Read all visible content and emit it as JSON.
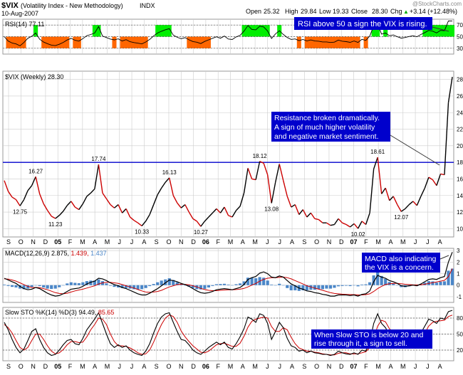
{
  "header": {
    "symbol": "$VIX",
    "name": "(Volatility Index - New Methodology)",
    "exchange": "INDX",
    "date": "10-Aug-2007",
    "quote": {
      "open_label": "Open",
      "open": "25.32",
      "high_label": "High",
      "high": "29.84",
      "low_label": "Low",
      "low": "19.33",
      "close_label": "Close",
      "close": "28.30",
      "chg_label": "Chg",
      "chg": "+3.14 (+12.48%)",
      "up_arrow": "▲"
    },
    "watermark": "@StockCharts.com"
  },
  "chart_data": [
    {
      "type": "line",
      "panel": "rsi",
      "label": "RSI(14) 77.11",
      "ylim": [
        20,
        80
      ],
      "yticks": [
        30,
        50,
        70
      ],
      "reference_lines": [
        30,
        50,
        70
      ],
      "fill_above": {
        "level": 70,
        "color": "#00ee00"
      },
      "fill_below": {
        "level": 30,
        "color": "#ff6600"
      },
      "annotation": "RSI above 50 a sign the VIX is rising."
    },
    {
      "type": "line",
      "panel": "price",
      "label": "$VIX (Weekly) 28.30",
      "ylim": [
        9,
        29
      ],
      "yticks": [
        10,
        12,
        14,
        16,
        18,
        20,
        22,
        24,
        26,
        28
      ],
      "resistance": 18,
      "resistance_color": "#0000cc",
      "up_color": "#000000",
      "down_color": "#cc0000",
      "series": [
        {
          "values": [
            15.8,
            14.5,
            13.8,
            13.5,
            12.75,
            13.5,
            14.6,
            15.2,
            16.27,
            14.2,
            13.0,
            12.2,
            11.5,
            11.23,
            11.6,
            12.1,
            12.8,
            13.3,
            12.6,
            12.3,
            13.0,
            13.9,
            14.3,
            14.8,
            17.74,
            14.3,
            13.6,
            12.9,
            12.5,
            12.9,
            11.9,
            12.4,
            11.4,
            11.0,
            10.7,
            10.33,
            10.9,
            11.7,
            12.9,
            14.1,
            14.9,
            15.6,
            16.13,
            14.0,
            13.1,
            12.5,
            12.9,
            12.0,
            11.2,
            10.9,
            10.27,
            10.9,
            11.4,
            11.9,
            12.4,
            11.9,
            12.6,
            11.6,
            11.4,
            12.2,
            12.7,
            14.3,
            17.3,
            16.0,
            15.9,
            18.12,
            17.9,
            16.5,
            13.08,
            15.6,
            17.8,
            15.8,
            13.9,
            12.6,
            12.9,
            11.7,
            12.3,
            11.4,
            11.9,
            11.2,
            11.1,
            10.7,
            10.7,
            10.4,
            10.5,
            11.2,
            10.7,
            10.5,
            10.2,
            10.6,
            10.02,
            10.9,
            10.5,
            11.9,
            17.2,
            18.61,
            14.2,
            14.9,
            13.4,
            13.9,
            12.9,
            12.07,
            12.4,
            12.9,
            13.3,
            12.8,
            13.9,
            14.9,
            16.2,
            15.9,
            15.2,
            16.6,
            16.5,
            25.2,
            28.3
          ]
        }
      ],
      "data_labels": [
        "16.27",
        "12.75",
        "11.23",
        "17.74",
        "10.33",
        "16.13",
        "10.27",
        "18.12",
        "13.08",
        "18.61",
        "10.02",
        "12.07"
      ],
      "annotation": "Resistance broken dramatically.\nA sign of much higher volatility\nand negative market sentiment."
    },
    {
      "type": "bar",
      "panel": "macd",
      "label_prefix": "MACD(12,26,9)",
      "macd_value": "2.875",
      "signal_value": "1.439",
      "hist_value": "1.437",
      "ylim": [
        -1.5,
        3.2
      ],
      "yticks": [
        -1,
        0,
        1,
        2,
        3
      ],
      "series": [
        {
          "name": "MACD",
          "values": [
            0.6,
            0.45,
            0.3,
            0.15,
            -0.1,
            -0.3,
            -0.4,
            -0.35,
            -0.2,
            -0.3,
            -0.5,
            -0.7,
            -0.85,
            -0.95,
            -0.9,
            -0.75,
            -0.55,
            -0.35,
            -0.3,
            -0.25,
            -0.1,
            0.1,
            0.25,
            0.35,
            0.6,
            0.55,
            0.4,
            0.2,
            0.05,
            -0.05,
            -0.2,
            -0.3,
            -0.45,
            -0.6,
            -0.75,
            -0.85,
            -0.85,
            -0.7,
            -0.5,
            -0.3,
            -0.05,
            0.2,
            0.45,
            0.4,
            0.3,
            0.15,
            0.05,
            -0.1,
            -0.3,
            -0.5,
            -0.65,
            -0.7,
            -0.65,
            -0.55,
            -0.4,
            -0.35,
            -0.3,
            -0.35,
            -0.4,
            -0.3,
            -0.2,
            0.05,
            0.5,
            0.65,
            0.75,
            1.05,
            1.15,
            1.0,
            0.7,
            0.65,
            0.8,
            0.7,
            0.4,
            0.1,
            -0.05,
            -0.25,
            -0.35,
            -0.5,
            -0.55,
            -0.65,
            -0.7,
            -0.8,
            -0.85,
            -0.95,
            -0.95,
            -0.85,
            -0.85,
            -0.85,
            -0.9,
            -0.85,
            -0.95,
            -0.8,
            -0.75,
            -0.5,
            0.3,
            0.85,
            0.7,
            0.6,
            0.4,
            0.3,
            0.15,
            -0.05,
            -0.1,
            -0.05,
            0.0,
            -0.05,
            0.1,
            0.3,
            0.5,
            0.55,
            0.5,
            0.65,
            0.75,
            2.0,
            2.875
          ]
        },
        {
          "name": "Signal",
          "values": [
            0.55,
            0.52,
            0.45,
            0.35,
            0.2,
            0.05,
            -0.1,
            -0.2,
            -0.2,
            -0.22,
            -0.3,
            -0.4,
            -0.52,
            -0.65,
            -0.72,
            -0.75,
            -0.7,
            -0.6,
            -0.5,
            -0.42,
            -0.35,
            -0.25,
            -0.15,
            -0.05,
            0.1,
            0.2,
            0.25,
            0.25,
            0.2,
            0.15,
            0.05,
            -0.05,
            -0.15,
            -0.25,
            -0.38,
            -0.5,
            -0.6,
            -0.62,
            -0.6,
            -0.55,
            -0.45,
            -0.3,
            -0.15,
            -0.05,
            0.05,
            0.08,
            0.07,
            0.03,
            -0.05,
            -0.15,
            -0.28,
            -0.38,
            -0.45,
            -0.48,
            -0.48,
            -0.45,
            -0.42,
            -0.4,
            -0.4,
            -0.38,
            -0.35,
            -0.28,
            -0.15,
            0.0,
            0.15,
            0.35,
            0.5,
            0.6,
            0.65,
            0.65,
            0.68,
            0.7,
            0.65,
            0.55,
            0.4,
            0.25,
            0.1,
            -0.05,
            -0.15,
            -0.25,
            -0.35,
            -0.45,
            -0.55,
            -0.65,
            -0.72,
            -0.75,
            -0.78,
            -0.8,
            -0.82,
            -0.82,
            -0.85,
            -0.85,
            -0.82,
            -0.75,
            -0.55,
            -0.3,
            -0.1,
            0.05,
            0.12,
            0.15,
            0.15,
            0.12,
            0.08,
            0.05,
            0.03,
            0.02,
            0.03,
            0.08,
            0.15,
            0.22,
            0.28,
            0.35,
            0.42,
            0.74,
            1.439
          ]
        }
      ],
      "annotation": "MACD also indicating\nthe VIX is a concern."
    },
    {
      "type": "line",
      "panel": "sto",
      "label_prefix": "Slow STO %K(14) %D(3)",
      "k_value": "94.49",
      "d_value": "85.65",
      "ylim": [
        0,
        100
      ],
      "yticks": [
        20,
        50,
        80
      ],
      "reference_lines": [
        20,
        50,
        80
      ],
      "series": [
        {
          "name": "%K",
          "values": [
            72,
            58,
            40,
            25,
            15,
            22,
            38,
            55,
            60,
            40,
            25,
            15,
            10,
            12,
            20,
            30,
            38,
            40,
            32,
            30,
            42,
            58,
            68,
            78,
            90,
            70,
            50,
            32,
            25,
            30,
            25,
            28,
            20,
            15,
            12,
            10,
            18,
            32,
            52,
            70,
            82,
            88,
            90,
            72,
            55,
            40,
            38,
            30,
            20,
            15,
            12,
            18,
            25,
            30,
            35,
            30,
            35,
            25,
            22,
            32,
            45,
            60,
            82,
            78,
            72,
            88,
            85,
            70,
            40,
            55,
            72,
            62,
            42,
            28,
            25,
            18,
            20,
            15,
            18,
            15,
            14,
            12,
            12,
            10,
            12,
            18,
            15,
            13,
            12,
            15,
            12,
            20,
            18,
            35,
            70,
            88,
            70,
            62,
            48,
            45,
            35,
            28,
            30,
            35,
            42,
            40,
            52,
            65,
            78,
            75,
            70,
            80,
            78,
            92,
            94.49
          ]
        },
        {
          "name": "%D",
          "values": [
            68,
            62,
            52,
            38,
            25,
            20,
            25,
            38,
            50,
            50,
            40,
            28,
            18,
            13,
            15,
            21,
            30,
            36,
            36,
            34,
            35,
            45,
            58,
            68,
            80,
            78,
            68,
            50,
            36,
            28,
            28,
            27,
            24,
            20,
            15,
            12,
            13,
            20,
            35,
            52,
            68,
            80,
            86,
            83,
            72,
            56,
            45,
            36,
            28,
            22,
            16,
            15,
            18,
            24,
            30,
            32,
            33,
            30,
            27,
            27,
            33,
            46,
            63,
            74,
            78,
            80,
            82,
            80,
            64,
            55,
            55,
            62,
            58,
            44,
            32,
            24,
            21,
            18,
            18,
            16,
            15,
            13,
            12,
            11,
            11,
            14,
            15,
            15,
            13,
            13,
            13,
            15,
            17,
            25,
            42,
            65,
            76,
            73,
            60,
            52,
            42,
            36,
            31,
            31,
            35,
            39,
            44,
            52,
            65,
            72,
            74,
            75,
            76,
            83,
            85.65
          ]
        }
      ],
      "annotation": "When Slow STO is below 20 and\nrise through it, a sign to sell."
    }
  ],
  "x_axis": {
    "month_labels": [
      "S",
      "O",
      "N",
      "D",
      "05",
      "F",
      "M",
      "A",
      "M",
      "J",
      "J",
      "A",
      "S",
      "O",
      "N",
      "D",
      "06",
      "F",
      "M",
      "A",
      "M",
      "J",
      "J",
      "A",
      "S",
      "O",
      "N",
      "D",
      "07",
      "F",
      "M",
      "A",
      "M",
      "J",
      "J",
      "A"
    ],
    "bold_labels": [
      "05",
      "06",
      "07"
    ]
  },
  "colors": {
    "grid": "#cccccc",
    "panel_border": "#999999",
    "price_line_up": "#000000",
    "price_line_down": "#cc0000",
    "resistance": "#0000cc",
    "macd_line": "#000000",
    "signal_line": "#cc0000",
    "histogram": "#4a86c8",
    "sto_k": "#000000",
    "sto_d": "#cc0000",
    "annotation_fill": "#0000cc",
    "annotation_text": "#ffffff",
    "rsi_upper_fill": "#00ee00",
    "rsi_lower_fill": "#ff6600"
  }
}
